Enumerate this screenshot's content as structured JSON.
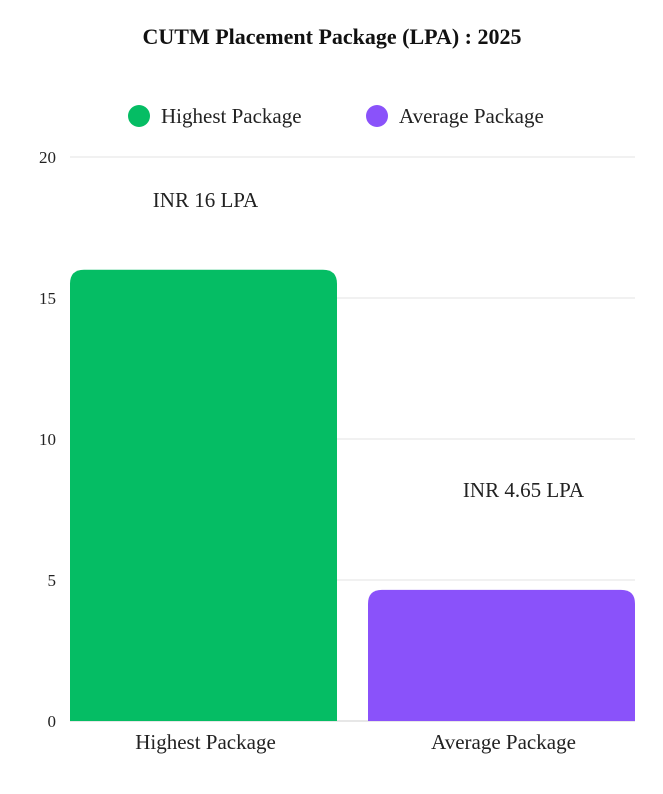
{
  "chart_data": {
    "type": "bar",
    "title": "CUTM Placement Package (LPA) :  2025",
    "categories": [
      "Highest Package",
      "Average Package"
    ],
    "values": [
      16,
      4.65
    ],
    "data_labels": [
      "INR 16 LPA",
      "INR 4.65 LPA"
    ],
    "colors": [
      "#05BD64",
      "#8A52FA"
    ],
    "legend": {
      "position": "top",
      "entries": [
        {
          "label": "Highest Package",
          "color": "#05BD64"
        },
        {
          "label": "Average Package",
          "color": "#8A52FA"
        }
      ]
    },
    "xlabel": "",
    "ylabel": "",
    "ylim": [
      0,
      20
    ],
    "yticks": [
      0,
      5,
      10,
      15,
      20
    ],
    "grid": true
  }
}
